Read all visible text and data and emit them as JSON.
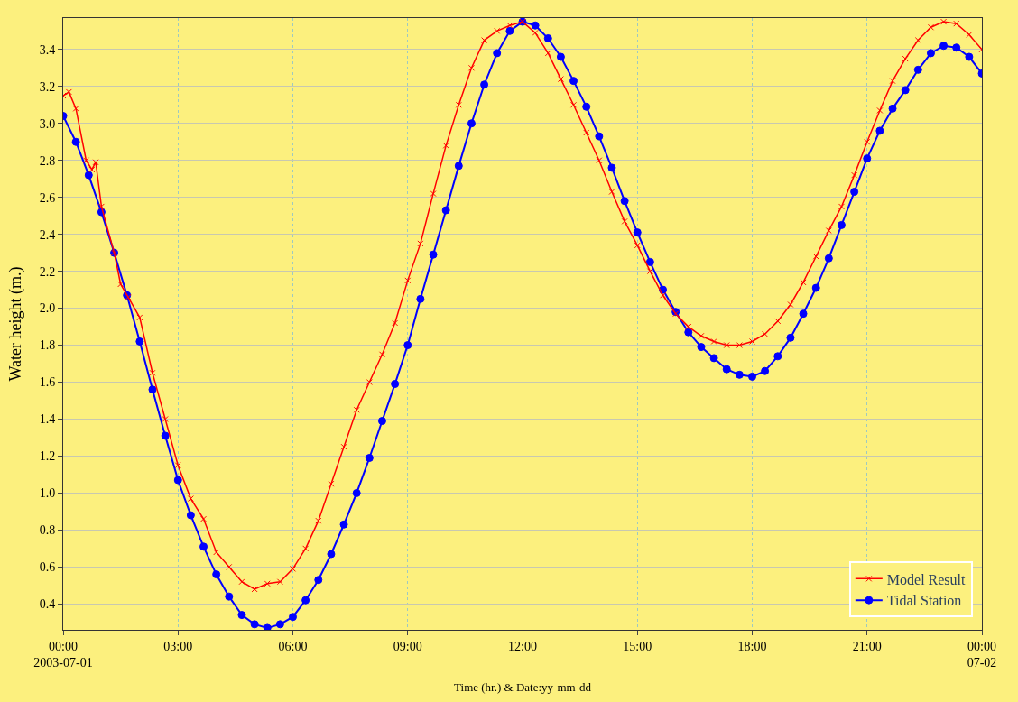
{
  "chart_data": {
    "type": "line",
    "xlabel": "Time (hr.) & Date:yy-mm-dd",
    "ylabel": "Water height (m.)",
    "xlim": [
      0,
      24
    ],
    "xticks": [
      {
        "value": 0,
        "label": "00:00\n2003-07-01"
      },
      {
        "value": 3,
        "label": "03:00"
      },
      {
        "value": 6,
        "label": "06:00"
      },
      {
        "value": 9,
        "label": "09:00"
      },
      {
        "value": 12,
        "label": "12:00"
      },
      {
        "value": 15,
        "label": "15:00"
      },
      {
        "value": 18,
        "label": "18:00"
      },
      {
        "value": 21,
        "label": "21:00"
      },
      {
        "value": 24,
        "label": "00:00\n07-02"
      }
    ],
    "ylim": [
      0.26,
      3.57
    ],
    "yticks": [
      {
        "value": 0.4,
        "label": "0.4"
      },
      {
        "value": 0.6,
        "label": "0.6"
      },
      {
        "value": 0.8,
        "label": "0.8"
      },
      {
        "value": 1.0,
        "label": "1.0"
      },
      {
        "value": 1.2,
        "label": "1.2"
      },
      {
        "value": 1.4,
        "label": "1.4"
      },
      {
        "value": 1.6,
        "label": "1.6"
      },
      {
        "value": 1.8,
        "label": "1.8"
      },
      {
        "value": 2.0,
        "label": "2.0"
      },
      {
        "value": 2.2,
        "label": "2.2"
      },
      {
        "value": 2.4,
        "label": "2.4"
      },
      {
        "value": 2.6,
        "label": "2.6"
      },
      {
        "value": 2.8,
        "label": "2.8"
      },
      {
        "value": 3.0,
        "label": "3.0"
      },
      {
        "value": 3.2,
        "label": "3.2"
      },
      {
        "value": 3.4,
        "label": "3.4"
      }
    ],
    "grid": true,
    "legend": "bottom right",
    "line_style": "solid",
    "series": [
      {
        "name": "Model Result",
        "color": "#ff0000",
        "marker": "cross",
        "x": [
          0,
          0.15,
          0.333,
          0.6,
          0.75,
          0.85,
          1,
          1.333,
          1.5,
          1.7,
          2,
          2.333,
          2.667,
          3,
          3.333,
          3.667,
          4,
          4.333,
          4.667,
          5,
          5.333,
          5.667,
          6,
          6.333,
          6.667,
          7,
          7.333,
          7.667,
          8,
          8.333,
          8.667,
          9,
          9.333,
          9.667,
          10,
          10.333,
          10.667,
          11,
          11.333,
          11.667,
          12,
          12.333,
          12.667,
          13,
          13.333,
          13.667,
          14,
          14.333,
          14.667,
          15,
          15.333,
          15.667,
          16,
          16.333,
          16.667,
          17,
          17.333,
          17.667,
          18,
          18.333,
          18.667,
          19,
          19.333,
          19.667,
          20,
          20.333,
          20.667,
          21,
          21.333,
          21.667,
          22,
          22.333,
          22.667,
          23,
          23.333,
          23.667,
          24
        ],
        "values": [
          3.15,
          3.17,
          3.08,
          2.8,
          2.75,
          2.79,
          2.55,
          2.3,
          2.13,
          2.06,
          1.95,
          1.65,
          1.4,
          1.15,
          0.97,
          0.86,
          0.68,
          0.6,
          0.52,
          0.48,
          0.51,
          0.52,
          0.59,
          0.7,
          0.85,
          1.05,
          1.25,
          1.45,
          1.6,
          1.75,
          1.92,
          2.15,
          2.35,
          2.62,
          2.88,
          3.1,
          3.3,
          3.45,
          3.5,
          3.53,
          3.55,
          3.49,
          3.38,
          3.24,
          3.1,
          2.95,
          2.8,
          2.63,
          2.47,
          2.34,
          2.2,
          2.07,
          1.97,
          1.9,
          1.85,
          1.82,
          1.8,
          1.8,
          1.82,
          1.86,
          1.93,
          2.02,
          2.14,
          2.28,
          2.42,
          2.55,
          2.72,
          2.9,
          3.07,
          3.23,
          3.35,
          3.45,
          3.52,
          3.55,
          3.54,
          3.48,
          3.4
        ]
      },
      {
        "name": "Tidal Station",
        "color": "#0000ff",
        "marker": "circle",
        "x": [
          0,
          0.333,
          0.667,
          1,
          1.333,
          1.667,
          2,
          2.333,
          2.667,
          3,
          3.333,
          3.667,
          4,
          4.333,
          4.667,
          5,
          5.333,
          5.667,
          6,
          6.333,
          6.667,
          7,
          7.333,
          7.667,
          8,
          8.333,
          8.667,
          9,
          9.333,
          9.667,
          10,
          10.333,
          10.667,
          11,
          11.333,
          11.667,
          12,
          12.333,
          12.667,
          13,
          13.333,
          13.667,
          14,
          14.333,
          14.667,
          15,
          15.333,
          15.667,
          16,
          16.333,
          16.667,
          17,
          17.333,
          17.667,
          18,
          18.333,
          18.667,
          19,
          19.333,
          19.667,
          20,
          20.333,
          20.667,
          21,
          21.333,
          21.667,
          22,
          22.333,
          22.667,
          23,
          23.333,
          23.667,
          24
        ],
        "values": [
          3.04,
          2.9,
          2.72,
          2.52,
          2.3,
          2.07,
          1.82,
          1.56,
          1.31,
          1.07,
          0.88,
          0.71,
          0.56,
          0.44,
          0.34,
          0.29,
          0.27,
          0.29,
          0.33,
          0.42,
          0.53,
          0.67,
          0.83,
          1.0,
          1.19,
          1.39,
          1.59,
          1.8,
          2.05,
          2.29,
          2.53,
          2.77,
          3.0,
          3.21,
          3.38,
          3.5,
          3.55,
          3.53,
          3.46,
          3.36,
          3.23,
          3.09,
          2.93,
          2.76,
          2.58,
          2.41,
          2.25,
          2.1,
          1.98,
          1.87,
          1.79,
          1.73,
          1.67,
          1.64,
          1.63,
          1.66,
          1.74,
          1.84,
          1.97,
          2.11,
          2.27,
          2.45,
          2.63,
          2.81,
          2.96,
          3.08,
          3.18,
          3.29,
          3.38,
          3.42,
          3.41,
          3.36,
          3.27
        ]
      }
    ]
  }
}
